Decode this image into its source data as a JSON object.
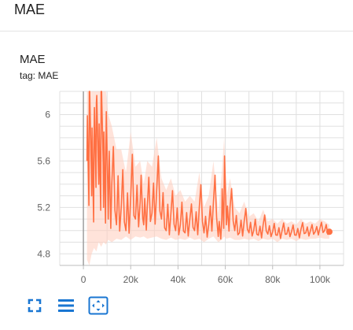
{
  "section": {
    "title": "MAE"
  },
  "card": {
    "title": "MAE",
    "tag": "tag: MAE"
  },
  "icons": {
    "fullscreen": "fullscreen-icon",
    "data_toggle": "toggle-data-icon",
    "fit_domain": "fit-domain-icon"
  },
  "colors": {
    "series": "#ff7043",
    "series_raw": "#ffccbc",
    "toolbar": "#1976d2",
    "grid": "#e0e0e0"
  },
  "chart_data": {
    "type": "line",
    "title": "",
    "xlabel": "",
    "ylabel": "",
    "xlim": [
      -10000,
      110000
    ],
    "ylim": [
      4.7,
      6.2
    ],
    "x_ticks": [
      0,
      20000,
      40000,
      60000,
      80000,
      100000
    ],
    "x_tick_labels": [
      "0",
      "20k",
      "40k",
      "60k",
      "80k",
      "100k"
    ],
    "y_ticks": [
      4.8,
      5.2,
      5.6,
      6.0
    ],
    "y_tick_labels": [
      "4.8",
      "5.2",
      "5.6",
      "6"
    ],
    "grid": true,
    "series": [
      {
        "x": [
          1500,
          2500,
          3500,
          4500,
          5500,
          6500,
          7500,
          8500,
          9500,
          10500,
          12000,
          14000,
          16000,
          18000,
          20000,
          22000,
          24000,
          25500,
          27000,
          29000,
          31000,
          33000,
          35000,
          37000,
          39000,
          41000,
          43000,
          45000,
          47000,
          49000,
          51000,
          53000,
          55000,
          57000,
          58500,
          59500,
          60500,
          62000,
          64000,
          66000,
          68000,
          70000,
          72000,
          74000,
          76000,
          78000,
          80000,
          82000,
          84000,
          86000,
          88000,
          90000,
          92000,
          94000,
          96000,
          98000,
          100000,
          102000,
          104000
        ],
        "y": [
          5.6,
          6.2,
          5.3,
          5.8,
          6.1,
          5.4,
          6.2,
          5.2,
          5.7,
          5.1,
          5.4,
          5.05,
          5.2,
          5.0,
          5.3,
          5.1,
          5.25,
          5.05,
          5.2,
          5.15,
          5.35,
          5.1,
          5.0,
          5.15,
          5.0,
          5.05,
          4.98,
          5.1,
          5.0,
          5.2,
          4.98,
          5.05,
          5.25,
          4.95,
          5.1,
          5.35,
          5.05,
          5.2,
          5.0,
          4.98,
          5.08,
          4.98,
          5.0,
          4.96,
          5.05,
          4.97,
          4.99,
          4.96,
          5.0,
          4.97,
          4.99,
          4.96,
          5.01,
          4.98,
          5.0,
          4.99,
          5.02,
          5.0,
          4.99
        ],
        "raw_low": [
          4.75,
          4.7,
          4.8,
          4.85,
          4.82,
          4.9,
          4.86,
          4.9,
          4.88,
          4.92,
          4.9,
          4.93,
          4.92,
          4.95,
          4.92,
          4.95,
          4.94,
          4.95,
          4.93,
          4.94,
          4.95,
          4.93,
          4.92,
          4.94,
          4.92,
          4.93,
          4.92,
          4.94,
          4.92,
          4.93,
          4.9,
          4.93,
          4.95,
          4.9,
          4.92,
          4.95,
          4.93,
          4.94,
          4.92,
          4.92,
          4.93,
          4.92,
          4.93,
          4.91,
          4.93,
          4.92,
          4.93,
          4.9,
          4.93,
          4.92,
          4.93,
          4.91,
          4.93,
          4.92,
          4.93,
          4.93,
          4.94,
          4.93,
          4.93
        ],
        "raw_high": [
          6.2,
          6.2,
          6.2,
          6.2,
          6.2,
          6.2,
          6.2,
          6.2,
          6.2,
          6.0,
          5.9,
          5.7,
          5.7,
          5.5,
          5.85,
          5.55,
          5.6,
          5.4,
          5.6,
          5.55,
          5.8,
          5.45,
          5.35,
          5.45,
          5.3,
          5.35,
          5.25,
          5.3,
          5.25,
          5.5,
          5.2,
          5.3,
          5.6,
          5.15,
          5.5,
          5.8,
          5.3,
          5.45,
          5.2,
          5.15,
          5.25,
          5.12,
          5.15,
          5.08,
          5.18,
          5.08,
          5.1,
          5.06,
          5.1,
          5.06,
          5.08,
          5.05,
          5.1,
          5.06,
          5.08,
          5.06,
          5.1,
          5.08,
          5.05
        ]
      }
    ]
  }
}
